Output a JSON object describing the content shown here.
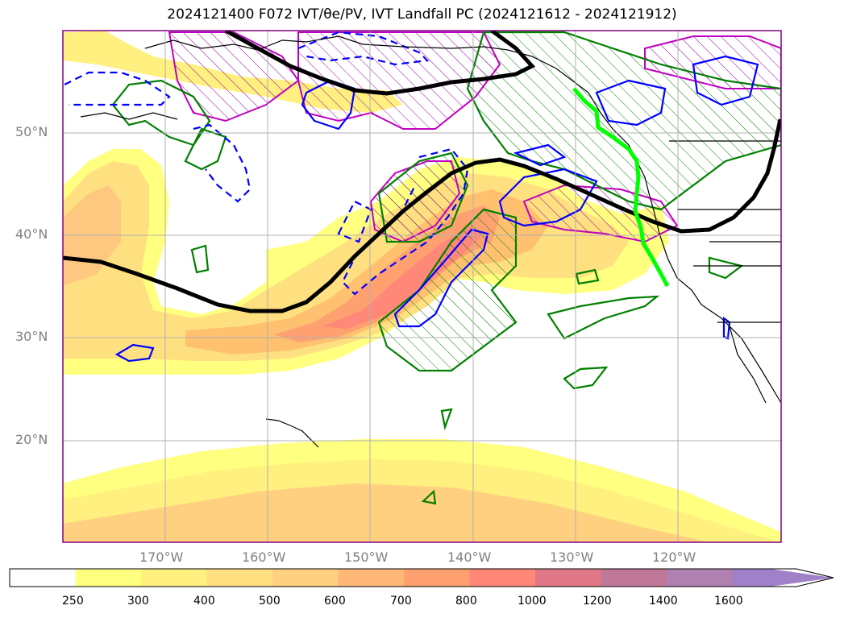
{
  "title": "2024121400 F072 IVT/θe/PV, IVT Landfall PC (2024121612 - 2024121912)",
  "lat_labels": [
    "50°N",
    "40°N",
    "30°N",
    "20°N"
  ],
  "lon_labels": [
    "170°W",
    "160°W",
    "150°W",
    "140°W",
    "130°W",
    "120°W"
  ],
  "colorbar": {
    "ticks": [
      "250",
      "300",
      "400",
      "500",
      "600",
      "700",
      "800",
      "1000",
      "1200",
      "1400",
      "1600"
    ],
    "colors": [
      "#ffffff",
      "#ffff80",
      "#fff080",
      "#ffe080",
      "#ffd080",
      "#ffb878",
      "#ffa070",
      "#ff8878",
      "#e07888",
      "#c07898",
      "#b080b0",
      "#a080c8"
    ],
    "extend": "max"
  },
  "legend_colors": {
    "ivt_fill": "#ffd080",
    "theta_e_contour": "#0000ff",
    "pv_contour": "#008000",
    "magenta_contour": "#c000c0",
    "jet_line": "#000000",
    "landfall_line": "#00ff00"
  }
}
